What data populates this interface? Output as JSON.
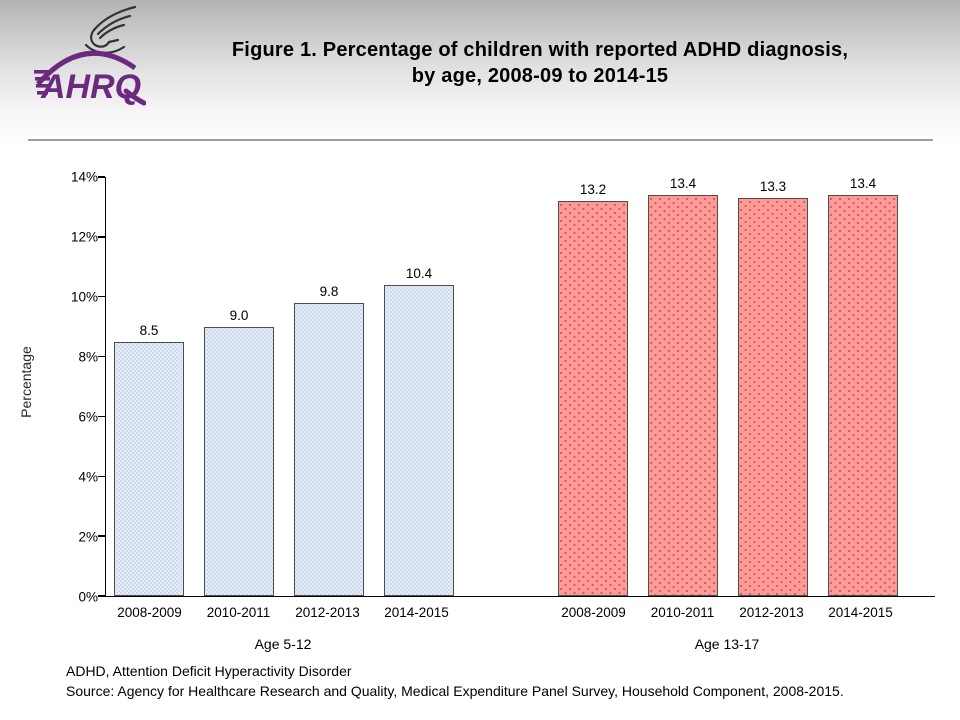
{
  "header": {
    "logo_text": "AHRQ",
    "title_line1": "Figure 1. Percentage of children with reported ADHD diagnosis,",
    "title_line2": "by age, 2008-09 to 2014-15"
  },
  "footer": {
    "note": "ADHD, Attention Deficit Hyperactivity Disorder",
    "source": "Source: Agency for Healthcare Research and Quality, Medical Expenditure Panel Survey, Household Component, 2008-2015."
  },
  "chart_data": {
    "type": "bar",
    "title": "Figure 1. Percentage of children with reported ADHD diagnosis, by age, 2008-09 to 2014-15",
    "xlabel": "",
    "ylabel": "Percentage",
    "ylim": [
      0,
      14
    ],
    "yticks": [
      "0%",
      "2%",
      "4%",
      "6%",
      "8%",
      "10%",
      "12%",
      "14%"
    ],
    "grid": false,
    "legend": false,
    "groups": [
      {
        "label": "Age 5-12",
        "categories": [
          "2008-2009",
          "2010-2011",
          "2012-2013",
          "2014-2015"
        ],
        "values": [
          8.5,
          9.0,
          9.8,
          10.4
        ],
        "fill": "#e8eef7",
        "dot_color": "#b3c9e6",
        "pattern": "fine-speckle"
      },
      {
        "label": "Age 13-17",
        "categories": [
          "2008-2009",
          "2010-2011",
          "2012-2013",
          "2014-2015"
        ],
        "values": [
          13.2,
          13.4,
          13.3,
          13.4
        ],
        "fill": "#fb9a97",
        "dot_color": "#d95350",
        "pattern": "dots"
      }
    ],
    "bar_border_color": "#4d4d4d"
  },
  "colors": {
    "logo_purple": "#6b2a7f",
    "eagle_gray": "#333333",
    "separator": "#9d9d9d",
    "axis": "#000000"
  }
}
